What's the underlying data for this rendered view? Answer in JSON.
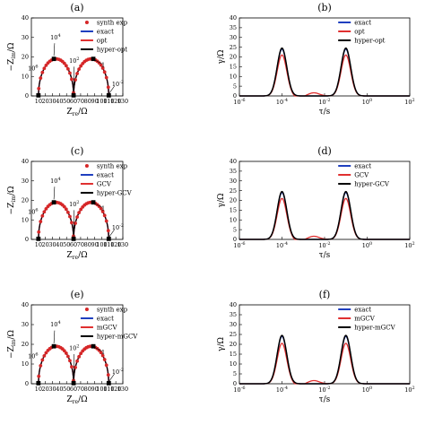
{
  "chart_data": [
    {
      "panel": "(a)",
      "type": "scatter",
      "xlabel": "Z_re/Ω",
      "ylabel": "−Z_im/Ω",
      "xlim": [
        0,
        130
      ],
      "ylim": [
        0,
        40
      ],
      "xticks": [
        "10",
        "20",
        "30",
        "40",
        "50",
        "60",
        "70",
        "80",
        "90",
        "100",
        "110",
        "120",
        "130"
      ],
      "yticks": [
        "0",
        "10",
        "20",
        "30",
        "40"
      ],
      "annotations": [
        {
          "text": "10^6",
          "x": 10,
          "y": 2
        },
        {
          "text": "10^4",
          "x": 33,
          "y": 19
        },
        {
          "text": "10^2",
          "x": 60,
          "y": 11
        },
        {
          "text": "1",
          "x": 88,
          "y": 18
        },
        {
          "text": "10^-2",
          "x": 109,
          "y": 2
        }
      ],
      "markers": [
        [
          10,
          0.3
        ],
        [
          32,
          19
        ],
        [
          60,
          0.3
        ],
        [
          88,
          19
        ],
        [
          110,
          0.3
        ]
      ],
      "series": [
        {
          "name": "synth exp",
          "style": "dots",
          "color": "#d62728"
        },
        {
          "name": "exact",
          "color": "#1f3fbf"
        },
        {
          "name": "opt",
          "color": "#e03030"
        },
        {
          "name": "hyper-opt",
          "color": "#000000"
        }
      ]
    },
    {
      "panel": "(b)",
      "type": "line",
      "xlabel": "τ/s",
      "ylabel": "γ/Ω",
      "xlim": [
        -6,
        2
      ],
      "xscale": "log",
      "ylim": [
        0,
        40
      ],
      "xticks": [
        "10^-6",
        "10^-4",
        "10^-2",
        "10^0",
        "10^2"
      ],
      "yticks": [
        "0",
        "5",
        "10",
        "15",
        "20",
        "25",
        "30",
        "35",
        "40"
      ],
      "series": [
        {
          "name": "exact",
          "color": "#1f3fbf",
          "peak": 24
        },
        {
          "name": "opt",
          "color": "#e03030",
          "peak": 21
        },
        {
          "name": "hyper-opt",
          "color": "#000000",
          "peak": 24.5
        }
      ]
    },
    {
      "panel": "(c)",
      "type": "scatter",
      "xlabel": "Z_re/Ω",
      "ylabel": "−Z_im/Ω",
      "xlim": [
        0,
        130
      ],
      "ylim": [
        0,
        40
      ],
      "xticks": [
        "10",
        "20",
        "30",
        "40",
        "50",
        "60",
        "70",
        "80",
        "90",
        "100",
        "110",
        "120",
        "130"
      ],
      "yticks": [
        "0",
        "10",
        "20",
        "30",
        "40"
      ],
      "annotations": [
        {
          "text": "10^6",
          "x": 10,
          "y": 2
        },
        {
          "text": "10^4",
          "x": 33,
          "y": 19
        },
        {
          "text": "10^2",
          "x": 60,
          "y": 11
        },
        {
          "text": "1",
          "x": 88,
          "y": 18
        },
        {
          "text": "10^-2",
          "x": 109,
          "y": 2
        }
      ],
      "markers": [
        [
          10,
          0.3
        ],
        [
          32,
          19
        ],
        [
          60,
          0.3
        ],
        [
          88,
          19
        ],
        [
          110,
          0.3
        ]
      ],
      "series": [
        {
          "name": "synth exp",
          "style": "dots",
          "color": "#d62728"
        },
        {
          "name": "exact",
          "color": "#1f3fbf"
        },
        {
          "name": "GCV",
          "color": "#e03030"
        },
        {
          "name": "hyper-GCV",
          "color": "#000000"
        }
      ]
    },
    {
      "panel": "(d)",
      "type": "line",
      "xlabel": "τ/s",
      "ylabel": "γ/Ω",
      "xlim": [
        -6,
        2
      ],
      "xscale": "log",
      "ylim": [
        0,
        40
      ],
      "xticks": [
        "10^-6",
        "10^-4",
        "10^-2",
        "10^0",
        "10^2"
      ],
      "yticks": [
        "0",
        "5",
        "10",
        "15",
        "20",
        "25",
        "30",
        "35",
        "40"
      ],
      "series": [
        {
          "name": "exact",
          "color": "#1f3fbf",
          "peak": 24
        },
        {
          "name": "GCV",
          "color": "#e03030",
          "peak": 21
        },
        {
          "name": "hyper-GCV",
          "color": "#000000",
          "peak": 24.5
        }
      ]
    },
    {
      "panel": "(e)",
      "type": "scatter",
      "xlabel": "Z_re/Ω",
      "ylabel": "−Z_im/Ω",
      "xlim": [
        0,
        130
      ],
      "ylim": [
        0,
        40
      ],
      "xticks": [
        "10",
        "20",
        "30",
        "40",
        "50",
        "60",
        "70",
        "80",
        "90",
        "100",
        "110",
        "120",
        "130"
      ],
      "yticks": [
        "0",
        "10",
        "20",
        "30",
        "40"
      ],
      "annotations": [
        {
          "text": "10^6",
          "x": 10,
          "y": 2
        },
        {
          "text": "10^4",
          "x": 33,
          "y": 19
        },
        {
          "text": "10^2",
          "x": 60,
          "y": 11
        },
        {
          "text": "1",
          "x": 88,
          "y": 18
        },
        {
          "text": "10^-2",
          "x": 109,
          "y": 2
        }
      ],
      "markers": [
        [
          10,
          0.3
        ],
        [
          32,
          19
        ],
        [
          60,
          0.3
        ],
        [
          88,
          19
        ],
        [
          110,
          0.3
        ]
      ],
      "series": [
        {
          "name": "synth exp",
          "style": "dots",
          "color": "#d62728"
        },
        {
          "name": "exact",
          "color": "#1f3fbf"
        },
        {
          "name": "mGCV",
          "color": "#e03030"
        },
        {
          "name": "hyper-mGCV",
          "color": "#000000"
        }
      ]
    },
    {
      "panel": "(f)",
      "type": "line",
      "xlabel": "τ/s",
      "ylabel": "γ/Ω",
      "xlim": [
        -6,
        2
      ],
      "xscale": "log",
      "ylim": [
        0,
        40
      ],
      "xticks": [
        "10^-6",
        "10^-4",
        "10^-2",
        "10^0",
        "10^2"
      ],
      "yticks": [
        "0",
        "5",
        "10",
        "15",
        "20",
        "25",
        "30",
        "35",
        "40"
      ],
      "series": [
        {
          "name": "exact",
          "color": "#1f3fbf",
          "peak": 24
        },
        {
          "name": "mGCV",
          "color": "#e03030",
          "peak": 20.5
        },
        {
          "name": "hyper-mGCV",
          "color": "#000000",
          "peak": 24.5
        }
      ]
    }
  ]
}
